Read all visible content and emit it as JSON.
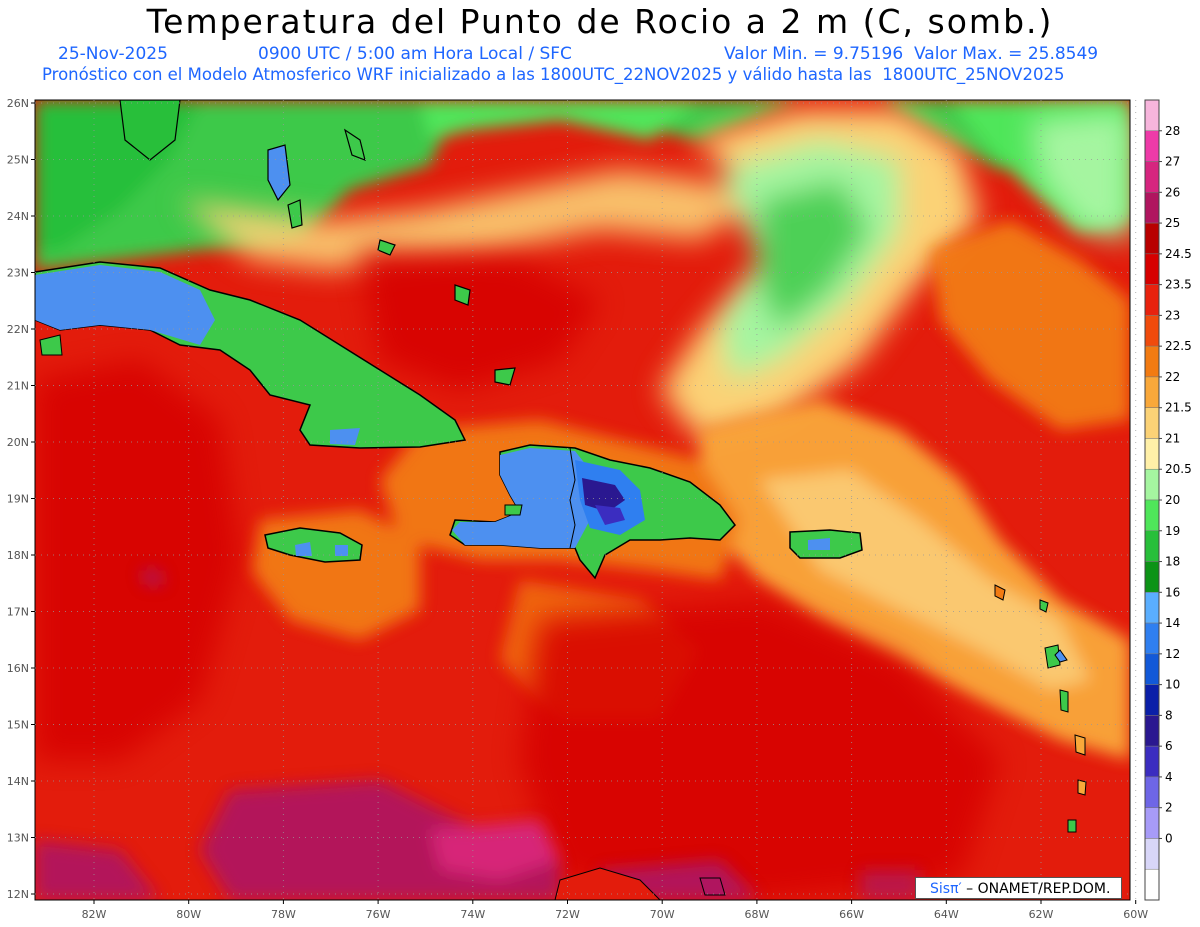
{
  "header": {
    "title": "Temperatura del Punto de Rocio a 2 m (C, somb.)",
    "date": "25-Nov-2025",
    "time": "0900 UTC / 5:00 am Hora Local / SFC",
    "minmax": "Valor Min. = 9.75196  Valor Max. = 25.8549",
    "model_info": "Pronóstico con el Modelo Atmosferico WRF inicializado a las 1800UTC_22NOV2025 y válido hasta las  1800UTC_25NOV2025"
  },
  "axes": {
    "lat_labels": [
      "26N",
      "25N",
      "24N",
      "23N",
      "22N",
      "21N",
      "20N",
      "19N",
      "18N",
      "17N",
      "16N",
      "15N",
      "14N",
      "13N",
      "12N"
    ],
    "lon_labels": [
      "82W",
      "80W",
      "78W",
      "76W",
      "74W",
      "72W",
      "70W",
      "68W",
      "66W",
      "64W",
      "62W",
      "60W"
    ]
  },
  "colorbar": {
    "labels": [
      "28",
      "27",
      "26",
      "25",
      "24.5",
      "23.5",
      "23",
      "22.5",
      "22",
      "21.5",
      "21",
      "20.5",
      "20",
      "19",
      "18",
      "16",
      "14",
      "12",
      "10",
      "8",
      "6",
      "4",
      "2",
      "0"
    ],
    "colors": [
      "#f7b5dc",
      "#ee3aa8",
      "#d6257f",
      "#b0155f",
      "#b80000",
      "#d60000",
      "#e8220e",
      "#f04b0c",
      "#f27b12",
      "#f9a83a",
      "#fbd276",
      "#fff0a8",
      "#a5f5a0",
      "#4fe65a",
      "#28bf3a",
      "#0c9316",
      "#5aaefe",
      "#2f7ff0",
      "#1259d8",
      "#0a1fa8",
      "#2a1890",
      "#3b2dc0",
      "#6e66e6",
      "#a79bf8",
      "#d8d6f8",
      "#ffffff"
    ]
  },
  "credit": {
    "sis": "Sisπ′",
    "rest": " – ONAMET/REP.DOM."
  },
  "colors": {
    "subtitle_blue": "#1e66ff",
    "ocean_red": "#e31c0c",
    "land_blue": "#4d90f0",
    "land_green": "#3dc94a"
  }
}
